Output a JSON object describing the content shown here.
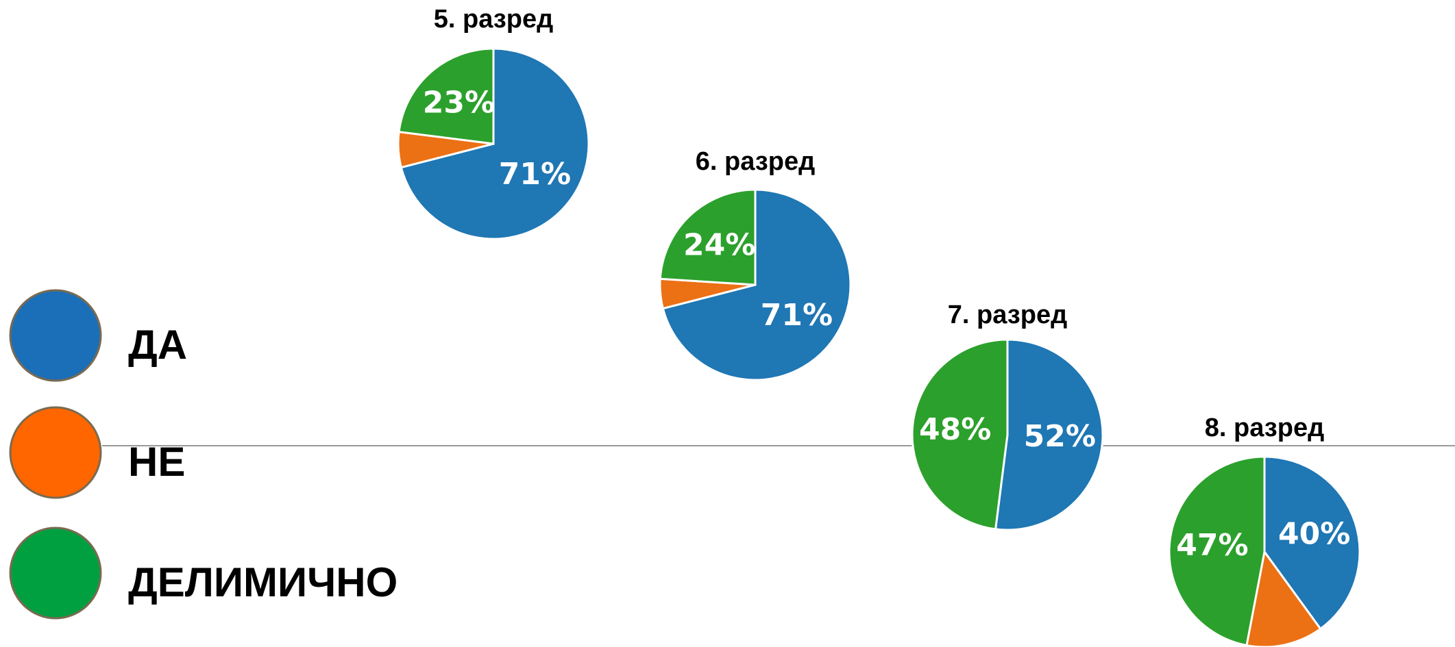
{
  "legend": {
    "categories": [
      "ДА",
      "НЕ",
      "ДЕЛИМИЧНО"
    ],
    "colors": [
      "#1a6fb8",
      "#ff6600",
      "#00a040"
    ]
  },
  "chart_data": [
    {
      "type": "pie",
      "title": "5. разред",
      "values": [
        71,
        6,
        23
      ],
      "value_labels": [
        "71%",
        null,
        "23%"
      ],
      "colors": [
        "#1f77b4",
        "#ec7014",
        "#2ca02c"
      ]
    },
    {
      "type": "pie",
      "title": "6. разред",
      "values": [
        71,
        5,
        24
      ],
      "value_labels": [
        "71%",
        null,
        "24%"
      ],
      "colors": [
        "#1f77b4",
        "#ec7014",
        "#2ca02c"
      ]
    },
    {
      "type": "pie",
      "title": "7. разред",
      "values": [
        52,
        0,
        48
      ],
      "value_labels": [
        "52%",
        null,
        "48%"
      ],
      "colors": [
        "#1f77b4",
        "#ec7014",
        "#2ca02c"
      ]
    },
    {
      "type": "pie",
      "title": "8. разред",
      "values": [
        40,
        13,
        47
      ],
      "value_labels": [
        "40%",
        null,
        "47%"
      ],
      "colors": [
        "#1f77b4",
        "#ec7014",
        "#2ca02c"
      ]
    }
  ]
}
